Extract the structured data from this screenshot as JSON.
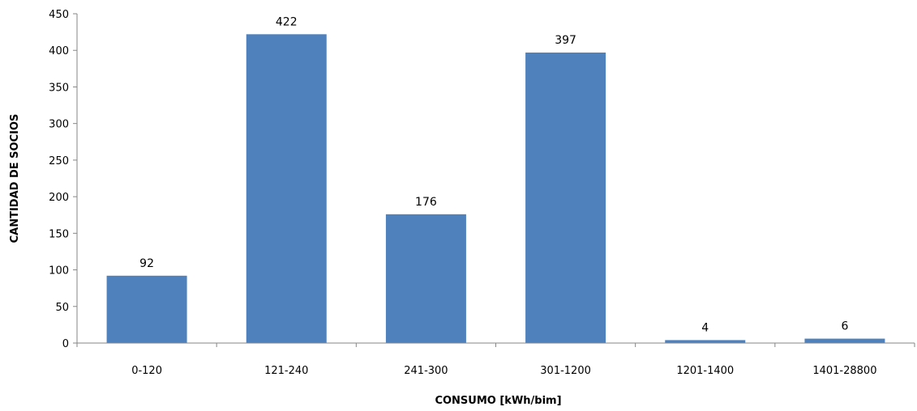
{
  "chart_data": {
    "type": "bar",
    "title": "",
    "xlabel": "CONSUMO [kWh/bim]",
    "ylabel": "CANTIDAD DE SOCIOS",
    "categories": [
      "0-120",
      "121-240",
      "241-300",
      "301-1200",
      "1201-1400",
      "1401-28800"
    ],
    "values": [
      92,
      422,
      176,
      397,
      4,
      6
    ],
    "data_labels": [
      "92",
      "422",
      "176",
      "397",
      "4",
      "6"
    ],
    "ylim": [
      0,
      450
    ],
    "yticks": [
      0,
      50,
      100,
      150,
      200,
      250,
      300,
      350,
      400,
      450
    ],
    "grid": false,
    "legend": "none",
    "bar_color": "#4f81bd"
  }
}
